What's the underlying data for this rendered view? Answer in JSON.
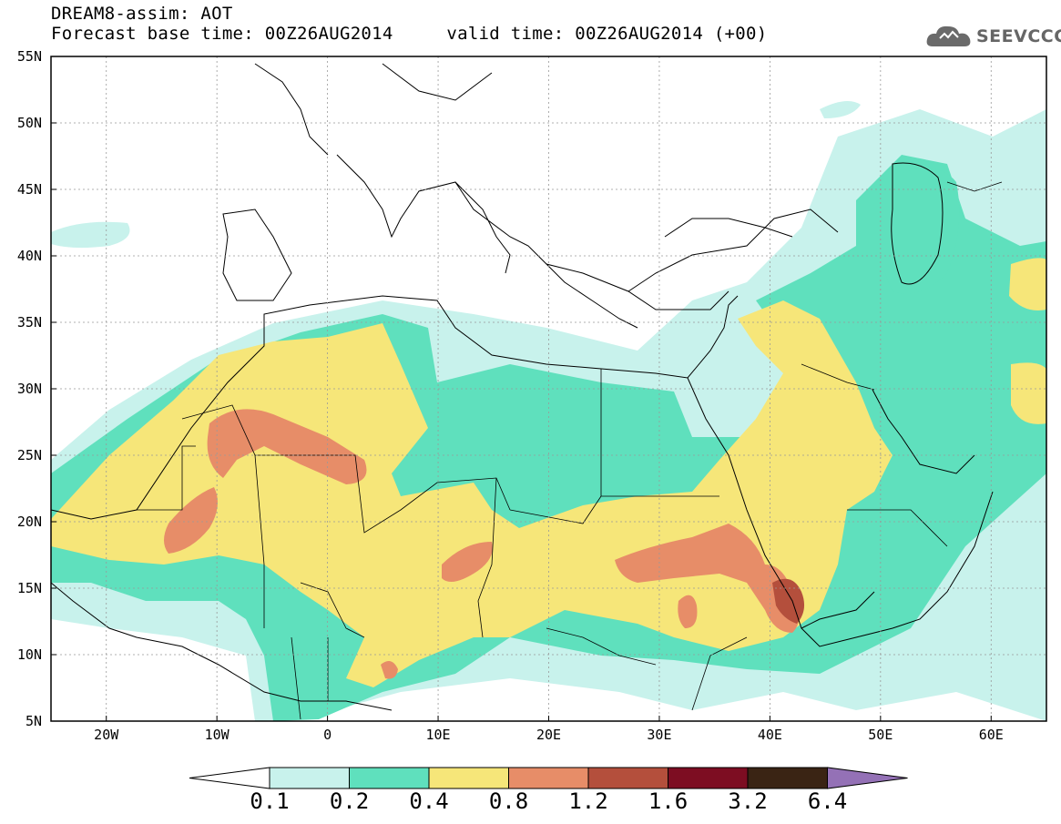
{
  "header": {
    "title_line1": "DREAM8-assim: AOT",
    "title_line2": "Forecast base time: 00Z26AUG2014     valid time: 00Z26AUG2014 (+00)"
  },
  "logo": {
    "text": "SEEVCCC",
    "icon": "cloud-logo-icon"
  },
  "map": {
    "lon_range": [
      -25,
      65
    ],
    "lat_range": [
      5,
      55
    ],
    "y_ticks": [
      "55N",
      "50N",
      "45N",
      "40N",
      "35N",
      "30N",
      "25N",
      "20N",
      "15N",
      "10N",
      "5N"
    ],
    "x_ticks": [
      "20W",
      "10W",
      "0",
      "10E",
      "20E",
      "30E",
      "40E",
      "50E",
      "60E"
    ],
    "gridlines": "dashed"
  },
  "colorbar": {
    "labels": [
      "0.1",
      "0.2",
      "0.4",
      "0.8",
      "1.2",
      "1.6",
      "3.2",
      "6.4"
    ],
    "colors": [
      "#c8f2ec",
      "#5fe0bd",
      "#f6e679",
      "#e78d68",
      "#b44f3c",
      "#7d0d22",
      "#3a2414",
      "#9471b6"
    ],
    "under_color": "#ffffff"
  }
}
